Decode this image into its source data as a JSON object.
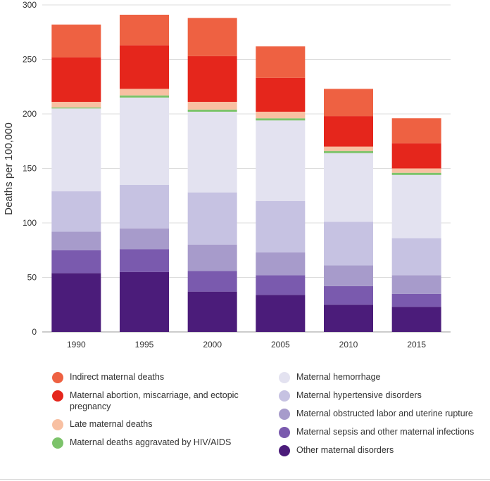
{
  "chart_data": {
    "type": "bar",
    "stacked": true,
    "title": "",
    "xlabel": "",
    "ylabel": "Deaths per 100,000",
    "ylim": [
      0,
      300
    ],
    "yticks": [
      0,
      50,
      100,
      150,
      200,
      250,
      300
    ],
    "categories": [
      "1990",
      "1995",
      "2000",
      "2005",
      "2010",
      "2015"
    ],
    "grid": "horizontal",
    "legend": "bottom, two columns",
    "series": [
      {
        "name": "Other maternal disorders",
        "color": "#4B1C7A",
        "values": [
          54,
          55,
          37,
          34,
          25,
          23
        ]
      },
      {
        "name": "Maternal sepsis and other maternal infections",
        "color": "#7A5AAE",
        "values": [
          21,
          21,
          19,
          18,
          17,
          12
        ]
      },
      {
        "name": "Maternal obstructed labor and uterine rupture",
        "color": "#A79BCB",
        "values": [
          17,
          19,
          24,
          21,
          19,
          17
        ]
      },
      {
        "name": "Maternal hypertensive disorders",
        "color": "#C6C2E2",
        "values": [
          37,
          40,
          48,
          47,
          40,
          34
        ]
      },
      {
        "name": "Maternal hemorrhage",
        "color": "#E3E2F0",
        "values": [
          76,
          80,
          74,
          74,
          63,
          58
        ]
      },
      {
        "name": "Maternal deaths aggravated by HIV/AIDS",
        "color": "#7CC36A",
        "values": [
          1,
          2,
          2,
          2,
          2,
          2
        ]
      },
      {
        "name": "Late maternal deaths",
        "color": "#F8C0A2",
        "values": [
          5,
          6,
          7,
          6,
          4,
          4
        ]
      },
      {
        "name": "Maternal abortion, miscarriage, and ectopic pregnancy",
        "color": "#E5261C",
        "values": [
          41,
          40,
          42,
          31,
          28,
          23
        ]
      },
      {
        "name": "Indirect maternal deaths",
        "color": "#EE6142",
        "values": [
          30,
          28,
          35,
          29,
          25,
          23
        ]
      }
    ]
  },
  "legend": {
    "left": [
      {
        "label": "Indirect maternal deaths",
        "color": "#EE6142"
      },
      {
        "label": "Maternal abortion, miscarriage, and ectopic pregnancy",
        "color": "#E5261C"
      },
      {
        "label": "Late maternal deaths",
        "color": "#F8C0A2"
      },
      {
        "label": "Maternal deaths aggravated by HIV/AIDS",
        "color": "#7CC36A"
      }
    ],
    "right": [
      {
        "label": "Maternal hemorrhage",
        "color": "#E3E2F0"
      },
      {
        "label": "Maternal hypertensive disorders",
        "color": "#C6C2E2"
      },
      {
        "label": "Maternal obstructed labor and uterine rupture",
        "color": "#A79BCB"
      },
      {
        "label": "Maternal sepsis and other maternal infections",
        "color": "#7A5AAE"
      },
      {
        "label": "Other maternal disorders",
        "color": "#4B1C7A"
      }
    ]
  }
}
